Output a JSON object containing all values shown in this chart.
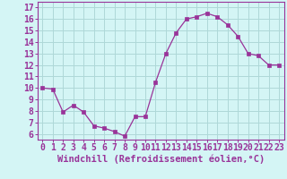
{
  "x": [
    0,
    1,
    2,
    3,
    4,
    5,
    6,
    7,
    8,
    9,
    10,
    11,
    12,
    13,
    14,
    15,
    16,
    17,
    18,
    19,
    20,
    21,
    22,
    23
  ],
  "y": [
    10.0,
    9.9,
    7.9,
    8.5,
    7.9,
    6.7,
    6.5,
    6.2,
    5.8,
    7.5,
    7.5,
    10.5,
    13.0,
    14.8,
    16.0,
    16.2,
    16.5,
    16.2,
    15.5,
    14.5,
    13.0,
    12.8,
    12.0,
    12.0
  ],
  "line_color": "#993399",
  "marker_color": "#993399",
  "bg_color": "#d4f5f5",
  "grid_color": "#aed8d8",
  "xlabel": "Windchill (Refroidissement éolien,°C)",
  "ylabel_ticks": [
    6,
    7,
    8,
    9,
    10,
    11,
    12,
    13,
    14,
    15,
    16,
    17
  ],
  "ylim": [
    5.5,
    17.5
  ],
  "xlim": [
    -0.5,
    23.5
  ],
  "tick_label_color": "#993399",
  "axis_color": "#993399",
  "xlabel_color": "#993399",
  "xlabel_fontsize": 7.5,
  "tick_fontsize": 7.0
}
